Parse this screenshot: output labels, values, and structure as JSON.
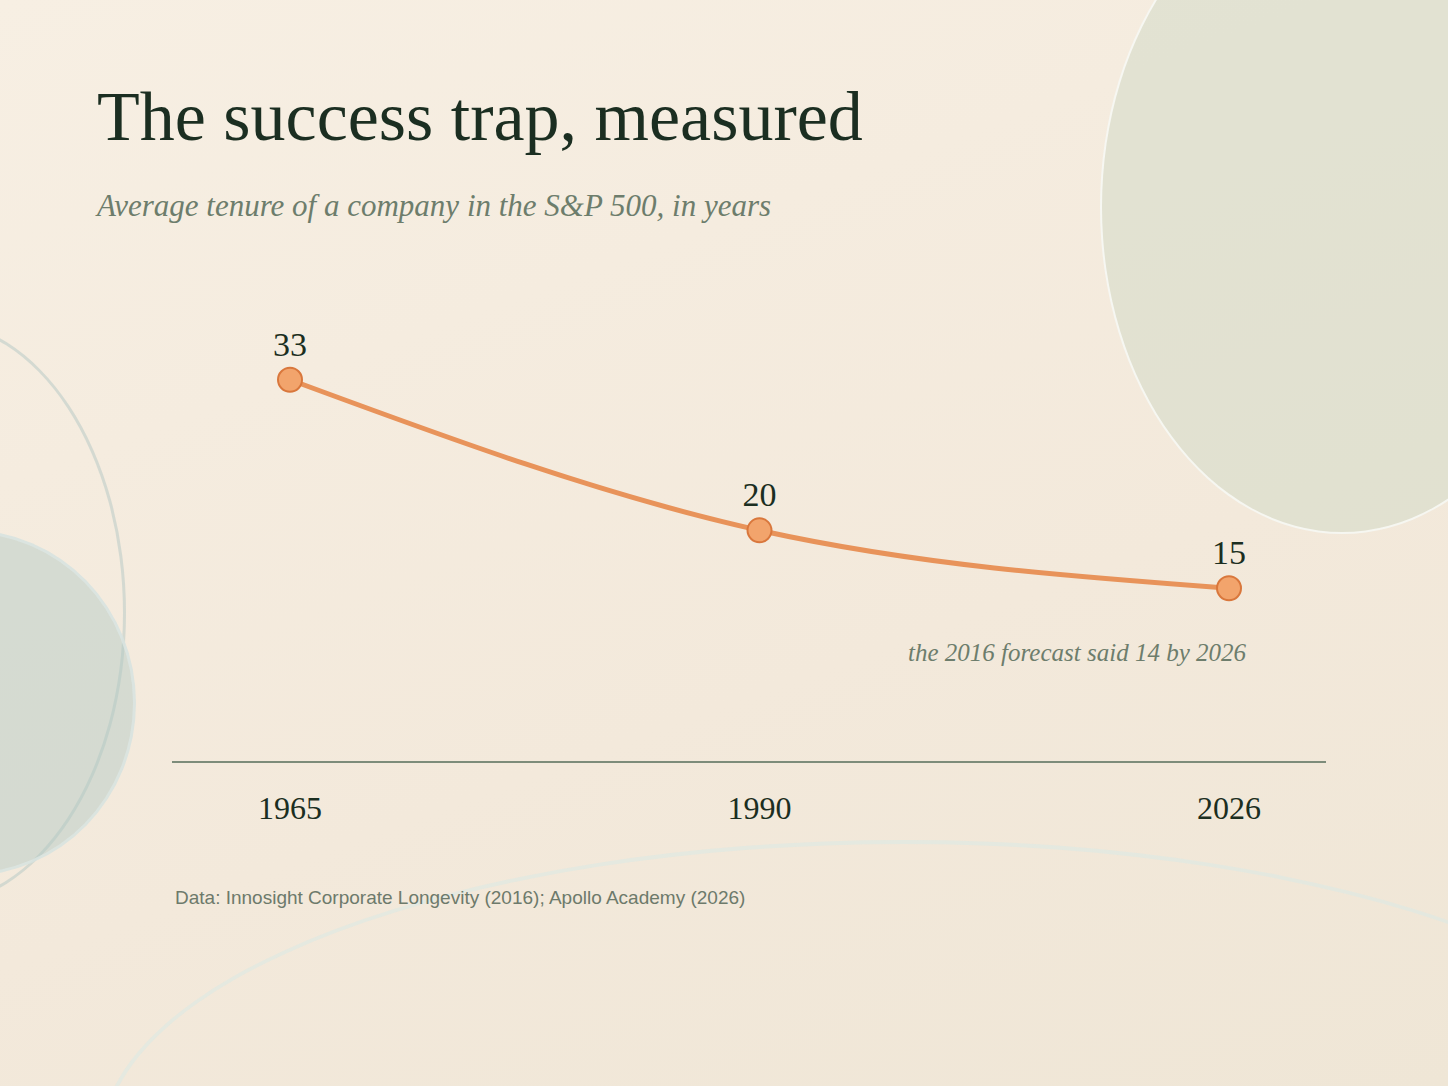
{
  "chart_data": {
    "type": "line",
    "title": "The success trap, measured",
    "subtitle": "Average tenure of a company in the S&P 500, in years",
    "categories": [
      "1965",
      "1990",
      "2026"
    ],
    "values": [
      33,
      20,
      15
    ],
    "color": "#e8935a",
    "ylim": [
      0,
      36
    ],
    "annotations": [
      "the 2016 forecast said 14 by 2026"
    ],
    "source": "Data: Innosight Corporate Longevity (2016); Apollo Academy (2026)",
    "data_labels": true,
    "tick_labels": "x",
    "grid": false,
    "marker": "circle",
    "line_style": "solid"
  }
}
